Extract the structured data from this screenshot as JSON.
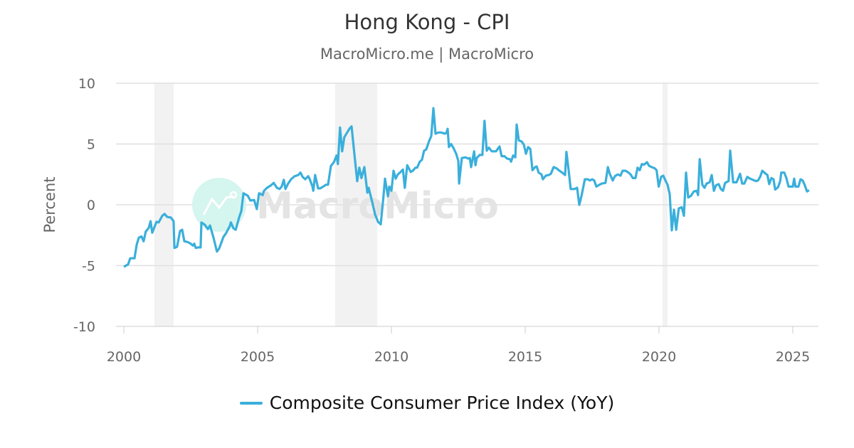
{
  "chart_data": {
    "type": "line",
    "title": "Hong Kong - CPI",
    "subtitle": "MacroMicro.me | MacroMicro",
    "ylabel": "Percent",
    "xlabel": "",
    "ylim": [
      -10,
      10
    ],
    "yticks": [
      "10",
      "5",
      "0",
      "-5",
      "-10"
    ],
    "xlim": [
      1999.7,
      2025.9
    ],
    "xticks": [
      "2000",
      "2005",
      "2010",
      "2015",
      "2020",
      "2025"
    ],
    "grid": true,
    "legend_position": "bottom",
    "recession_shading": [
      [
        2001.14,
        2001.86
      ],
      [
        2007.9,
        2009.47
      ],
      [
        2020.13,
        2020.32
      ]
    ],
    "series": [
      {
        "name": "Composite Consumer Price Index (YoY)",
        "color": "#3aafdb",
        "points": [
          [
            2000.0,
            -5.1
          ],
          [
            2000.16,
            -4.9
          ],
          [
            2000.24,
            -4.4
          ],
          [
            2000.4,
            -4.4
          ],
          [
            2000.48,
            -3.3
          ],
          [
            2000.56,
            -2.7
          ],
          [
            2000.66,
            -2.6
          ],
          [
            2000.74,
            -3.0
          ],
          [
            2000.82,
            -2.2
          ],
          [
            2000.93,
            -1.9
          ],
          [
            2001.0,
            -1.35
          ],
          [
            2001.06,
            -2.3
          ],
          [
            2001.22,
            -1.4
          ],
          [
            2001.3,
            -1.45
          ],
          [
            2001.44,
            -0.9
          ],
          [
            2001.52,
            -0.75
          ],
          [
            2001.62,
            -1.0
          ],
          [
            2001.76,
            -1.05
          ],
          [
            2001.86,
            -1.35
          ],
          [
            2001.89,
            -3.55
          ],
          [
            2001.99,
            -3.45
          ],
          [
            2002.1,
            -2.15
          ],
          [
            2002.18,
            -2.05
          ],
          [
            2002.26,
            -3.0
          ],
          [
            2002.37,
            -3.05
          ],
          [
            2002.47,
            -3.15
          ],
          [
            2002.58,
            -3.35
          ],
          [
            2002.63,
            -3.2
          ],
          [
            2002.69,
            -3.55
          ],
          [
            2002.77,
            -3.5
          ],
          [
            2002.87,
            -3.5
          ],
          [
            2002.9,
            -1.45
          ],
          [
            2003.03,
            -1.65
          ],
          [
            2003.14,
            -2.0
          ],
          [
            2003.22,
            -1.7
          ],
          [
            2003.35,
            -2.7
          ],
          [
            2003.48,
            -3.85
          ],
          [
            2003.56,
            -3.6
          ],
          [
            2003.72,
            -2.65
          ],
          [
            2003.83,
            -2.3
          ],
          [
            2003.96,
            -1.75
          ],
          [
            2004.0,
            -1.45
          ],
          [
            2004.1,
            -1.95
          ],
          [
            2004.18,
            -2.05
          ],
          [
            2004.3,
            -1.1
          ],
          [
            2004.39,
            -0.5
          ],
          [
            2004.47,
            0.95
          ],
          [
            2004.63,
            0.75
          ],
          [
            2004.73,
            0.35
          ],
          [
            2004.87,
            0.4
          ],
          [
            2004.97,
            -0.35
          ],
          [
            2005.05,
            0.95
          ],
          [
            2005.19,
            0.8
          ],
          [
            2005.24,
            1.15
          ],
          [
            2005.35,
            1.4
          ],
          [
            2005.5,
            1.6
          ],
          [
            2005.6,
            1.8
          ],
          [
            2005.72,
            1.4
          ],
          [
            2005.82,
            1.3
          ],
          [
            2005.9,
            1.5
          ],
          [
            2005.98,
            2.05
          ],
          [
            2006.04,
            1.3
          ],
          [
            2006.14,
            1.75
          ],
          [
            2006.25,
            2.1
          ],
          [
            2006.38,
            2.35
          ],
          [
            2006.52,
            2.45
          ],
          [
            2006.6,
            2.65
          ],
          [
            2006.68,
            2.3
          ],
          [
            2006.78,
            2.1
          ],
          [
            2006.89,
            2.35
          ],
          [
            2006.94,
            2.15
          ],
          [
            2007.05,
            1.5
          ],
          [
            2007.08,
            1.15
          ],
          [
            2007.15,
            2.45
          ],
          [
            2007.26,
            1.35
          ],
          [
            2007.34,
            1.35
          ],
          [
            2007.45,
            1.5
          ],
          [
            2007.55,
            1.65
          ],
          [
            2007.63,
            1.65
          ],
          [
            2007.74,
            3.2
          ],
          [
            2007.85,
            3.5
          ],
          [
            2007.95,
            4.05
          ],
          [
            2008.0,
            3.35
          ],
          [
            2008.08,
            6.35
          ],
          [
            2008.16,
            4.4
          ],
          [
            2008.24,
            5.55
          ],
          [
            2008.32,
            5.85
          ],
          [
            2008.43,
            6.25
          ],
          [
            2008.51,
            6.45
          ],
          [
            2008.62,
            4.1
          ],
          [
            2008.72,
            1.95
          ],
          [
            2008.8,
            3.05
          ],
          [
            2008.88,
            2.2
          ],
          [
            2008.99,
            3.1
          ],
          [
            2009.1,
            1.0
          ],
          [
            2009.15,
            1.4
          ],
          [
            2009.28,
            0.25
          ],
          [
            2009.39,
            -0.8
          ],
          [
            2009.5,
            -1.4
          ],
          [
            2009.6,
            -1.6
          ],
          [
            2009.7,
            0.6
          ],
          [
            2009.76,
            2.15
          ],
          [
            2009.87,
            0.7
          ],
          [
            2009.92,
            1.5
          ],
          [
            2010.0,
            1.15
          ],
          [
            2010.08,
            2.8
          ],
          [
            2010.16,
            2.15
          ],
          [
            2010.24,
            2.5
          ],
          [
            2010.32,
            2.65
          ],
          [
            2010.43,
            2.9
          ],
          [
            2010.5,
            1.4
          ],
          [
            2010.59,
            3.25
          ],
          [
            2010.72,
            2.7
          ],
          [
            2010.8,
            2.8
          ],
          [
            2010.9,
            3.05
          ],
          [
            2010.96,
            3.05
          ],
          [
            2011.06,
            3.55
          ],
          [
            2011.14,
            3.7
          ],
          [
            2011.22,
            4.45
          ],
          [
            2011.3,
            4.55
          ],
          [
            2011.41,
            5.25
          ],
          [
            2011.49,
            5.65
          ],
          [
            2011.57,
            7.95
          ],
          [
            2011.65,
            5.85
          ],
          [
            2011.76,
            5.95
          ],
          [
            2011.86,
            5.95
          ],
          [
            2011.99,
            5.85
          ],
          [
            2012.05,
            5.9
          ],
          [
            2012.1,
            6.25
          ],
          [
            2012.15,
            4.75
          ],
          [
            2012.23,
            5.0
          ],
          [
            2012.31,
            4.7
          ],
          [
            2012.42,
            4.2
          ],
          [
            2012.5,
            3.6
          ],
          [
            2012.53,
            1.75
          ],
          [
            2012.63,
            3.85
          ],
          [
            2012.77,
            3.9
          ],
          [
            2012.87,
            3.8
          ],
          [
            2012.93,
            3.85
          ],
          [
            2012.98,
            3.1
          ],
          [
            2013.09,
            4.4
          ],
          [
            2013.14,
            3.25
          ],
          [
            2013.19,
            3.85
          ],
          [
            2013.3,
            4.1
          ],
          [
            2013.4,
            4.1
          ],
          [
            2013.48,
            6.9
          ],
          [
            2013.56,
            4.45
          ],
          [
            2013.64,
            4.7
          ],
          [
            2013.75,
            4.4
          ],
          [
            2013.91,
            4.4
          ],
          [
            2014.04,
            4.8
          ],
          [
            2014.12,
            4.0
          ],
          [
            2014.22,
            4.0
          ],
          [
            2014.32,
            3.8
          ],
          [
            2014.43,
            3.75
          ],
          [
            2014.47,
            3.55
          ],
          [
            2014.55,
            4.05
          ],
          [
            2014.63,
            3.9
          ],
          [
            2014.68,
            6.6
          ],
          [
            2014.76,
            5.3
          ],
          [
            2014.87,
            5.2
          ],
          [
            2014.95,
            4.95
          ],
          [
            2015.03,
            4.2
          ],
          [
            2015.11,
            4.75
          ],
          [
            2015.19,
            4.6
          ],
          [
            2015.27,
            2.85
          ],
          [
            2015.37,
            3.1
          ],
          [
            2015.43,
            3.15
          ],
          [
            2015.5,
            2.65
          ],
          [
            2015.61,
            2.5
          ],
          [
            2015.66,
            2.1
          ],
          [
            2015.77,
            2.4
          ],
          [
            2015.88,
            2.45
          ],
          [
            2015.96,
            2.55
          ],
          [
            2016.06,
            3.1
          ],
          [
            2016.17,
            3.0
          ],
          [
            2016.28,
            2.8
          ],
          [
            2016.38,
            2.65
          ],
          [
            2016.49,
            2.45
          ],
          [
            2016.54,
            4.35
          ],
          [
            2016.62,
            2.9
          ],
          [
            2016.7,
            1.3
          ],
          [
            2016.84,
            1.3
          ],
          [
            2016.94,
            1.4
          ],
          [
            2017.02,
            0.0
          ],
          [
            2017.1,
            0.7
          ],
          [
            2017.23,
            2.1
          ],
          [
            2017.34,
            2.1
          ],
          [
            2017.42,
            2.0
          ],
          [
            2017.5,
            2.1
          ],
          [
            2017.58,
            2.0
          ],
          [
            2017.66,
            1.5
          ],
          [
            2017.77,
            1.65
          ],
          [
            2017.87,
            1.75
          ],
          [
            2018.0,
            1.8
          ],
          [
            2018.09,
            3.1
          ],
          [
            2018.16,
            2.55
          ],
          [
            2018.27,
            2.0
          ],
          [
            2018.35,
            2.35
          ],
          [
            2018.46,
            2.5
          ],
          [
            2018.56,
            2.4
          ],
          [
            2018.64,
            2.8
          ],
          [
            2018.75,
            2.8
          ],
          [
            2018.86,
            2.65
          ],
          [
            2018.94,
            2.5
          ],
          [
            2019.02,
            2.2
          ],
          [
            2019.12,
            2.2
          ],
          [
            2019.2,
            3.05
          ],
          [
            2019.28,
            2.85
          ],
          [
            2019.36,
            3.35
          ],
          [
            2019.44,
            3.3
          ],
          [
            2019.55,
            3.5
          ],
          [
            2019.63,
            3.2
          ],
          [
            2019.73,
            3.1
          ],
          [
            2019.84,
            3.0
          ],
          [
            2019.91,
            2.85
          ],
          [
            2019.99,
            1.5
          ],
          [
            2020.08,
            2.3
          ],
          [
            2020.16,
            2.4
          ],
          [
            2020.24,
            2.0
          ],
          [
            2020.32,
            1.65
          ],
          [
            2020.4,
            0.9
          ],
          [
            2020.48,
            -2.1
          ],
          [
            2020.56,
            -0.4
          ],
          [
            2020.64,
            -2.05
          ],
          [
            2020.74,
            -0.3
          ],
          [
            2020.85,
            -0.2
          ],
          [
            2020.93,
            -0.9
          ],
          [
            2021.01,
            2.65
          ],
          [
            2021.09,
            0.6
          ],
          [
            2021.2,
            0.75
          ],
          [
            2021.3,
            1.1
          ],
          [
            2021.41,
            1.15
          ],
          [
            2021.46,
            0.8
          ],
          [
            2021.52,
            3.75
          ],
          [
            2021.62,
            1.65
          ],
          [
            2021.7,
            1.4
          ],
          [
            2021.78,
            1.75
          ],
          [
            2021.89,
            1.85
          ],
          [
            2021.97,
            2.45
          ],
          [
            2022.05,
            1.15
          ],
          [
            2022.13,
            1.6
          ],
          [
            2022.23,
            1.7
          ],
          [
            2022.31,
            1.3
          ],
          [
            2022.39,
            1.15
          ],
          [
            2022.47,
            1.8
          ],
          [
            2022.6,
            1.95
          ],
          [
            2022.66,
            4.45
          ],
          [
            2022.77,
            1.85
          ],
          [
            2022.9,
            1.85
          ],
          [
            2023.03,
            2.55
          ],
          [
            2023.11,
            1.75
          ],
          [
            2023.19,
            1.75
          ],
          [
            2023.3,
            2.3
          ],
          [
            2023.4,
            2.15
          ],
          [
            2023.51,
            2.05
          ],
          [
            2023.62,
            1.95
          ],
          [
            2023.7,
            2.0
          ],
          [
            2023.78,
            2.3
          ],
          [
            2023.86,
            2.8
          ],
          [
            2023.96,
            2.6
          ],
          [
            2024.05,
            2.45
          ],
          [
            2024.12,
            1.7
          ],
          [
            2024.2,
            2.2
          ],
          [
            2024.28,
            2.1
          ],
          [
            2024.34,
            1.25
          ],
          [
            2024.45,
            1.45
          ],
          [
            2024.53,
            1.95
          ],
          [
            2024.57,
            2.65
          ],
          [
            2024.68,
            2.65
          ],
          [
            2024.76,
            2.2
          ],
          [
            2024.84,
            1.5
          ],
          [
            2025.0,
            1.5
          ],
          [
            2025.05,
            2.15
          ],
          [
            2025.1,
            1.5
          ],
          [
            2025.21,
            1.5
          ],
          [
            2025.29,
            2.1
          ],
          [
            2025.37,
            2.0
          ],
          [
            2025.45,
            1.6
          ],
          [
            2025.53,
            1.1
          ],
          [
            2025.61,
            1.2
          ]
        ]
      }
    ]
  },
  "watermark": {
    "text": "MacroMicro",
    "circle_color": "#d5f5ef",
    "text_color": "#e4e4e4"
  },
  "colors": {
    "line": "#3aafdb",
    "shading": "#f2f2f2",
    "grid": "#e0e0e0"
  }
}
